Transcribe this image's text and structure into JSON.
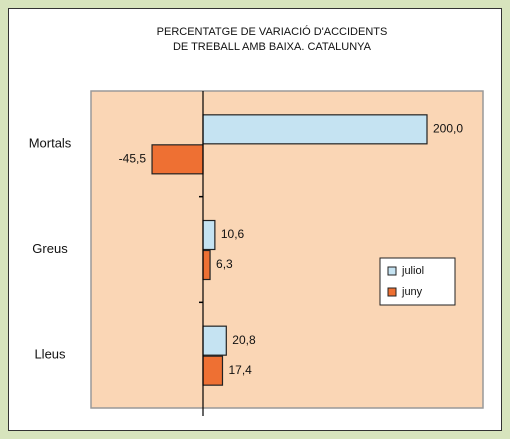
{
  "chart_data": {
    "type": "hbar",
    "title": [
      "PERCENTATGE DE VARIACIÓ D'ACCIDENTS",
      "DE TREBALL AMB BAIXA. CATALUNYA"
    ],
    "categories": [
      "Mortals",
      "Greus",
      "Lleus"
    ],
    "series": [
      {
        "name": "juliol",
        "color": "#c5e3f2",
        "values": [
          200.0,
          10.6,
          20.8
        ],
        "value_labels": [
          "200,0",
          "10,6",
          "20,8"
        ]
      },
      {
        "name": "juny",
        "color": "#ee7033",
        "values": [
          -45.5,
          6.3,
          17.4
        ],
        "value_labels": [
          "-45,5",
          "6,3",
          "17,4"
        ]
      }
    ],
    "xlim": [
      -100,
      250
    ],
    "legend": "right"
  }
}
